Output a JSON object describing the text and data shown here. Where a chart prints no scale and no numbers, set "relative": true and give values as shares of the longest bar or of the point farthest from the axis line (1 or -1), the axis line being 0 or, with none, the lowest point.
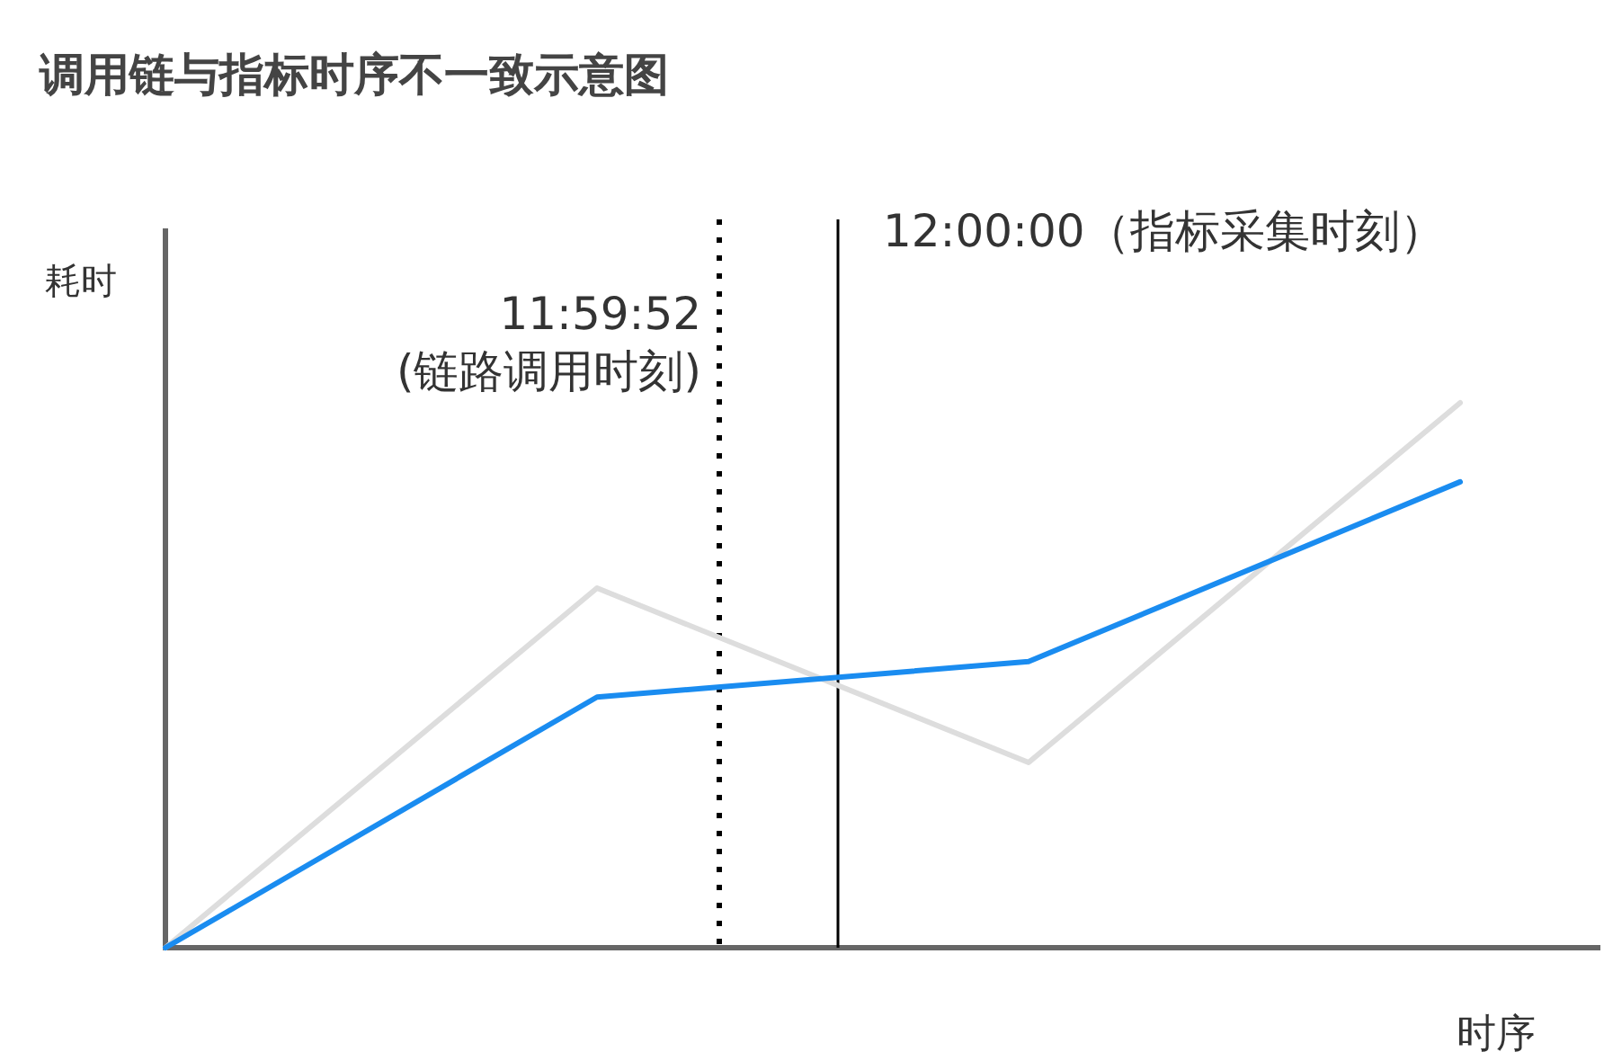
{
  "chart_data": {
    "type": "line",
    "title": "调用链与指标时序不一致示意图",
    "xlabel": "时序",
    "ylabel": "耗时",
    "relative": true,
    "categories": [
      null,
      null,
      null,
      null
    ],
    "series": [
      {
        "color": "#dddddd",
        "values": [
          0,
          0.66,
          0.34,
          1
        ]
      },
      {
        "color": "#1a8cf0",
        "values": [
          0,
          0.46,
          0.525,
          0.855
        ]
      }
    ],
    "annotations": [
      "11:59:52\n(链路调用时刻)",
      "12:00:00（指标采集时刻）"
    ],
    "grid": false,
    "marker": "none",
    "line_style": "solid"
  }
}
